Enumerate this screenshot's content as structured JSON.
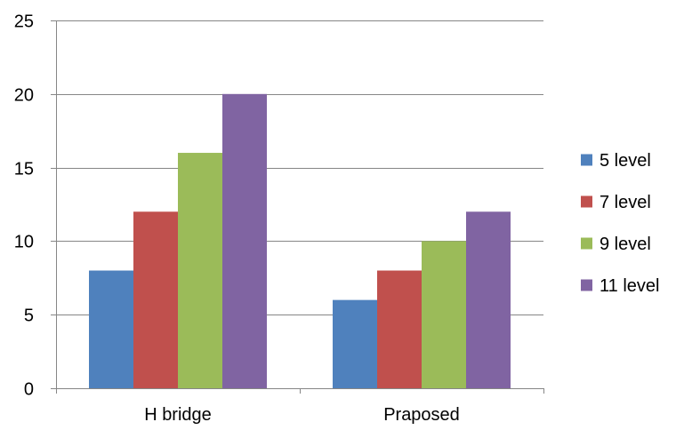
{
  "chart_data": {
    "type": "bar",
    "categories": [
      "H bridge",
      "Praposed"
    ],
    "series": [
      {
        "name": "5 level",
        "values": [
          8,
          6
        ],
        "color": "#4F81BD"
      },
      {
        "name": "7 level",
        "values": [
          12,
          8
        ],
        "color": "#C0504D"
      },
      {
        "name": "9 level",
        "values": [
          16,
          10
        ],
        "color": "#9BBB59"
      },
      {
        "name": "11 level",
        "values": [
          20,
          12
        ],
        "color": "#8064A2"
      }
    ],
    "y_ticks": [
      0,
      5,
      10,
      15,
      20,
      25
    ],
    "ylim": [
      0,
      25
    ],
    "grid": true,
    "legend_position": "right"
  }
}
